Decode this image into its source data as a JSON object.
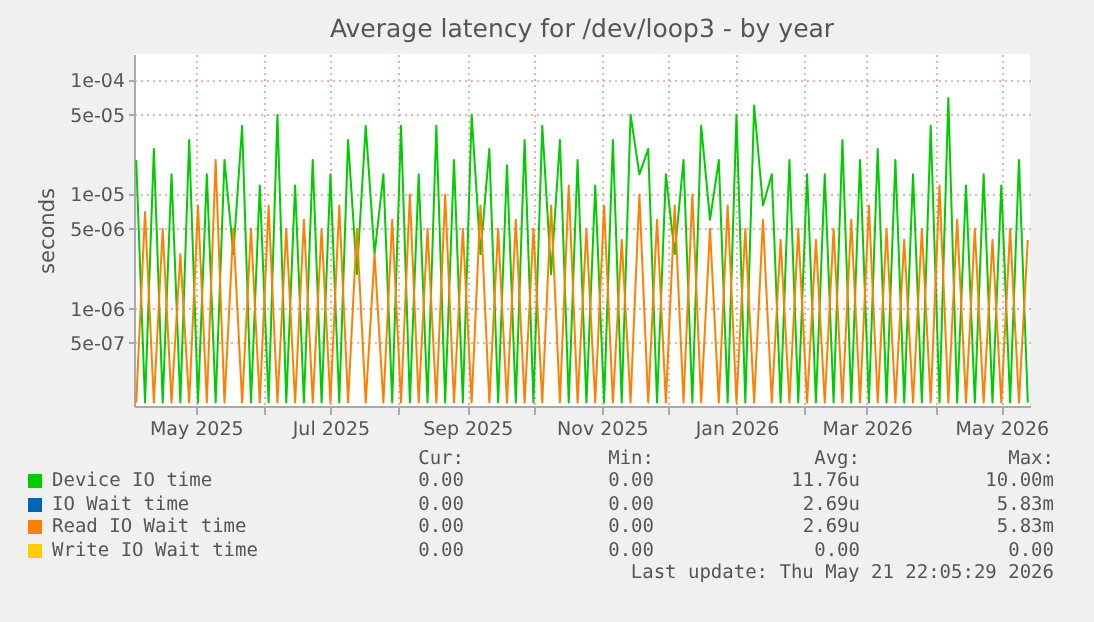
{
  "chart_data": {
    "type": "line",
    "title": "Average latency for /dev/loop3 - by year",
    "ylabel": "seconds",
    "log": "y",
    "grid": true,
    "legend": "bottom",
    "xlim": [
      "2025-04-03",
      "2026-05-14"
    ],
    "ylim": [
      1.4e-07,
      0.00017
    ],
    "yticks": [
      {
        "value": 5e-07,
        "label": "5e-07"
      },
      {
        "value": 1e-06,
        "label": "1e-06"
      },
      {
        "value": 5e-06,
        "label": "5e-06"
      },
      {
        "value": 1e-05,
        "label": "1e-05"
      },
      {
        "value": 5e-05,
        "label": "5e-05"
      },
      {
        "value": 0.0001,
        "label": "1e-04"
      }
    ],
    "xticks": [
      {
        "value": "2025-05-01",
        "label": "May 2025"
      },
      {
        "value": "2025-06-01",
        "label": null
      },
      {
        "value": "2025-07-01",
        "label": "Jul 2025"
      },
      {
        "value": "2025-08-01",
        "label": null
      },
      {
        "value": "2025-09-01",
        "label": "Sep 2025"
      },
      {
        "value": "2025-10-01",
        "label": null
      },
      {
        "value": "2025-11-01",
        "label": "Nov 2025"
      },
      {
        "value": "2025-12-01",
        "label": null
      },
      {
        "value": "2026-01-01",
        "label": "Jan 2026"
      },
      {
        "value": "2026-02-01",
        "label": null
      },
      {
        "value": "2026-03-01",
        "label": "Mar 2026"
      },
      {
        "value": "2026-04-01",
        "label": null
      },
      {
        "value": "2026-05-01",
        "label": "May 2026"
      }
    ],
    "x": [
      "2025-04-04",
      "2025-04-08",
      "2025-04-12",
      "2025-04-16",
      "2025-04-20",
      "2025-04-24",
      "2025-04-28",
      "2025-05-02",
      "2025-05-06",
      "2025-05-10",
      "2025-05-14",
      "2025-05-18",
      "2025-05-22",
      "2025-05-26",
      "2025-05-30",
      "2025-06-03",
      "2025-06-07",
      "2025-06-11",
      "2025-06-15",
      "2025-06-19",
      "2025-06-23",
      "2025-06-27",
      "2025-07-01",
      "2025-07-05",
      "2025-07-09",
      "2025-07-13",
      "2025-07-17",
      "2025-07-21",
      "2025-07-25",
      "2025-07-29",
      "2025-08-02",
      "2025-08-06",
      "2025-08-10",
      "2025-08-14",
      "2025-08-18",
      "2025-08-22",
      "2025-08-26",
      "2025-08-30",
      "2025-09-03",
      "2025-09-07",
      "2025-09-11",
      "2025-09-15",
      "2025-09-19",
      "2025-09-23",
      "2025-09-27",
      "2025-10-01",
      "2025-10-05",
      "2025-10-09",
      "2025-10-13",
      "2025-10-17",
      "2025-10-21",
      "2025-10-25",
      "2025-10-29",
      "2025-11-02",
      "2025-11-06",
      "2025-11-10",
      "2025-11-14",
      "2025-11-18",
      "2025-11-22",
      "2025-11-26",
      "2025-11-30",
      "2025-12-04",
      "2025-12-08",
      "2025-12-12",
      "2025-12-16",
      "2025-12-20",
      "2025-12-24",
      "2025-12-28",
      "2026-01-01",
      "2026-01-05",
      "2026-01-09",
      "2026-01-13",
      "2026-01-17",
      "2026-01-21",
      "2026-01-25",
      "2026-01-29",
      "2026-02-02",
      "2026-02-06",
      "2026-02-10",
      "2026-02-14",
      "2026-02-18",
      "2026-02-22",
      "2026-02-26",
      "2026-03-02",
      "2026-03-06",
      "2026-03-10",
      "2026-03-14",
      "2026-03-18",
      "2026-03-22",
      "2026-03-26",
      "2026-03-30",
      "2026-04-03",
      "2026-04-07",
      "2026-04-11",
      "2026-04-15",
      "2026-04-19",
      "2026-04-23",
      "2026-04-27",
      "2026-05-01",
      "2026-05-05",
      "2026-05-09",
      "2026-05-13"
    ],
    "series": [
      {
        "name": "Device IO time",
        "color": "#00cc00",
        "values": [
          2e-05,
          1.5e-07,
          2.5e-05,
          1.5e-07,
          1.5e-05,
          1.5e-07,
          3e-05,
          1.5e-07,
          1.5e-05,
          1.5e-07,
          2e-05,
          3e-06,
          4e-05,
          1.5e-07,
          1.2e-05,
          1.5e-07,
          5e-05,
          1.5e-07,
          1.2e-05,
          1.5e-07,
          2e-05,
          1.5e-07,
          1.5e-05,
          1.5e-07,
          3e-05,
          2e-06,
          4e-05,
          3e-06,
          1.5e-05,
          1.5e-07,
          4e-05,
          1.5e-07,
          1.5e-05,
          1.5e-07,
          4e-05,
          1.5e-07,
          2e-05,
          1.5e-07,
          5e-05,
          3e-06,
          2.5e-05,
          1.5e-07,
          1.8e-05,
          1.5e-07,
          3e-05,
          1.5e-07,
          4e-05,
          2e-06,
          3e-05,
          1.5e-07,
          2e-05,
          1.5e-07,
          1.2e-05,
          1.5e-07,
          3e-05,
          1.5e-07,
          5e-05,
          1.5e-05,
          2.5e-05,
          1.5e-07,
          1.5e-05,
          3e-06,
          2e-05,
          1.5e-07,
          4e-05,
          6e-06,
          2e-05,
          1.5e-07,
          5e-05,
          1.5e-07,
          6e-05,
          8e-06,
          1.5e-05,
          1.5e-07,
          2e-05,
          1.5e-07,
          1.5e-05,
          1.5e-07,
          1.5e-05,
          1.5e-07,
          3e-05,
          1.5e-07,
          2e-05,
          1.5e-07,
          2.5e-05,
          1.5e-07,
          2e-05,
          1.5e-07,
          1.5e-05,
          1.5e-07,
          4e-05,
          1.5e-07,
          7e-05,
          1.5e-07,
          1.2e-05,
          1.5e-07,
          1.5e-05,
          1.5e-07,
          1.2e-05,
          1.5e-07,
          2e-05,
          1.5e-07
        ]
      },
      {
        "name": "IO Wait time",
        "color": "#0066b3",
        "values": [
          null,
          null,
          null,
          null,
          null,
          null,
          null,
          null,
          null,
          null,
          null,
          null,
          null,
          null,
          null,
          null,
          null,
          null,
          null,
          null,
          null,
          null,
          null,
          null,
          null,
          null,
          null,
          null,
          null,
          null,
          null,
          null,
          null,
          null,
          null,
          null,
          null,
          null,
          null,
          null,
          null,
          null,
          null,
          null,
          null,
          null,
          null,
          null,
          null,
          null,
          null,
          null,
          null,
          null,
          null,
          null,
          null,
          null,
          null,
          null,
          null,
          null,
          null,
          null,
          null,
          null,
          null,
          null,
          null,
          null,
          null,
          null,
          null,
          null,
          null,
          null,
          null,
          null,
          null,
          null,
          null,
          null,
          null,
          null,
          null,
          null,
          null,
          null,
          null,
          null,
          null,
          null,
          null,
          null,
          null,
          null,
          null,
          null,
          null,
          null,
          null,
          null
        ]
      },
      {
        "name": "Read IO Wait time",
        "color": "#ff8000",
        "values": [
          1.5e-07,
          7e-06,
          1.5e-07,
          5e-06,
          1.5e-07,
          3e-06,
          1.5e-07,
          8e-06,
          1.5e-07,
          2e-05,
          1.5e-07,
          5e-06,
          1.5e-07,
          5e-06,
          1.5e-07,
          8e-06,
          1.5e-07,
          5e-06,
          1.5e-07,
          6e-06,
          1.5e-07,
          5e-06,
          1.5e-07,
          8e-06,
          1.5e-07,
          5e-06,
          1.5e-07,
          3e-06,
          1.5e-07,
          6e-06,
          1.5e-07,
          1e-05,
          1.5e-07,
          5e-06,
          1.5e-07,
          1e-05,
          1.5e-07,
          5e-06,
          1.5e-07,
          8e-06,
          1.5e-07,
          5e-06,
          1.5e-07,
          6e-06,
          1.5e-07,
          5e-06,
          1.5e-07,
          8e-06,
          1.5e-07,
          1.2e-05,
          1.5e-07,
          5e-06,
          1.5e-07,
          8e-06,
          1.5e-07,
          4e-06,
          1.5e-07,
          1e-05,
          1.5e-07,
          6e-06,
          1.5e-07,
          8e-06,
          1.5e-07,
          1e-05,
          1.5e-07,
          5e-06,
          1.5e-07,
          8e-06,
          1.5e-07,
          5e-06,
          1.5e-07,
          6e-06,
          1.5e-07,
          4e-06,
          1.5e-07,
          5e-06,
          1.5e-07,
          4e-06,
          1.5e-07,
          5e-06,
          1.5e-07,
          6e-06,
          1.5e-07,
          8e-06,
          1.5e-07,
          5e-06,
          1.5e-07,
          4e-06,
          1.5e-07,
          5e-06,
          1.5e-07,
          1.2e-05,
          1.5e-07,
          6e-06,
          1.5e-07,
          5e-06,
          1.5e-07,
          4e-06,
          1.5e-07,
          5e-06,
          1.5e-07,
          4e-06
        ]
      },
      {
        "name": "Write IO Wait time",
        "color": "#ffcc00",
        "values": [
          null,
          null,
          null,
          null,
          null,
          null,
          null,
          null,
          null,
          null,
          null,
          null,
          null,
          null,
          null,
          null,
          null,
          null,
          null,
          null,
          null,
          null,
          null,
          null,
          null,
          null,
          null,
          null,
          null,
          null,
          null,
          null,
          null,
          null,
          null,
          null,
          null,
          null,
          null,
          null,
          null,
          null,
          null,
          null,
          null,
          null,
          null,
          null,
          null,
          null,
          null,
          null,
          null,
          null,
          null,
          null,
          null,
          null,
          null,
          null,
          null,
          null,
          null,
          null,
          null,
          null,
          null,
          null,
          null,
          null,
          null,
          null,
          null,
          null,
          null,
          null,
          null,
          null,
          null,
          null,
          null,
          null,
          null,
          null,
          null,
          null,
          null,
          null,
          null,
          null,
          null,
          null,
          null,
          null,
          null,
          null,
          null,
          null,
          null,
          null,
          null,
          null
        ]
      }
    ],
    "annotations": [
      "Cur:",
      "Min:",
      "Avg:",
      "Max:",
      "0.00",
      "0.00",
      "11.76u",
      "10.00m",
      "0.00",
      "0.00",
      "2.69u",
      "5.83m",
      "0.00",
      "0.00",
      "2.69u",
      "5.83m",
      "0.00",
      "0.00",
      "0.00",
      "0.00",
      "Last update: Thu May 21 22:05:29 2026"
    ]
  }
}
